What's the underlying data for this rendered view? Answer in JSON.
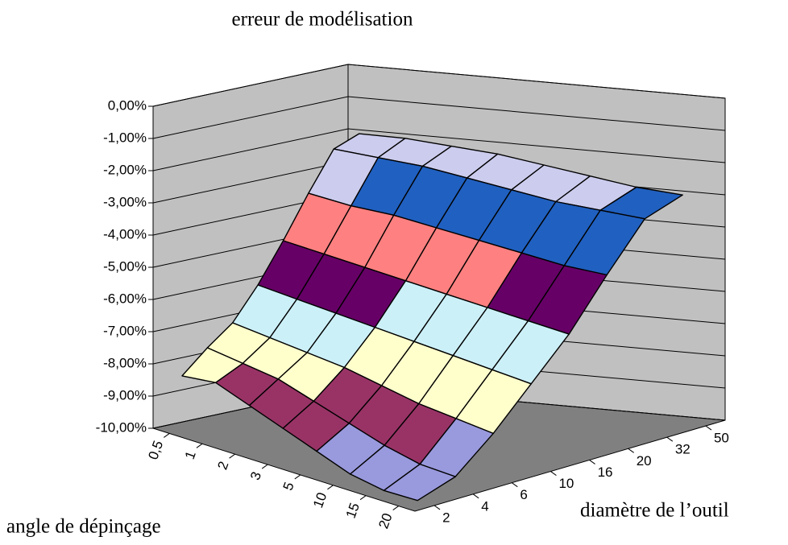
{
  "chart_data": {
    "type": "surface",
    "title": "erreur de modélisation",
    "xlabel": "angle de dépinçage",
    "ylabel": "diamètre de l’outil",
    "x_categories": [
      "0,5",
      "1",
      "2",
      "3",
      "5",
      "10",
      "15",
      "20"
    ],
    "y_categories": [
      "2",
      "4",
      "6",
      "10",
      "16",
      "20",
      "32",
      "50"
    ],
    "values": [
      [
        -8.3,
        -7.6,
        -7.0,
        -6.0,
        -4.8,
        -3.5,
        -2.3,
        -2.0
      ],
      [
        -8.2,
        -7.8,
        -7.2,
        -6.2,
        -5.0,
        -3.7,
        -2.4,
        -2.0
      ],
      [
        -8.6,
        -8.0,
        -7.4,
        -6.4,
        -5.2,
        -3.8,
        -2.5,
        -2.1
      ],
      [
        -9.0,
        -8.4,
        -7.6,
        -6.6,
        -5.4,
        -4.0,
        -2.7,
        -2.2
      ],
      [
        -9.4,
        -8.8,
        -7.9,
        -6.8,
        -5.6,
        -4.2,
        -2.9,
        -2.4
      ],
      [
        -9.8,
        -9.2,
        -8.2,
        -7.0,
        -5.8,
        -4.4,
        -3.1,
        -2.6
      ],
      [
        -10.0,
        -9.5,
        -8.4,
        -7.2,
        -6.0,
        -4.6,
        -3.2,
        -2.8
      ],
      [
        -10.0,
        -9.6,
        -8.6,
        -7.4,
        -6.2,
        -4.7,
        -3.3,
        -2.9
      ]
    ],
    "zlim": [
      -10,
      0
    ],
    "zticks": [
      {
        "value": 0,
        "label": "0,00%"
      },
      {
        "value": -1,
        "label": "-1,00%"
      },
      {
        "value": -2,
        "label": "-2,00%"
      },
      {
        "value": -3,
        "label": "-3,00%"
      },
      {
        "value": -4,
        "label": "-4,00%"
      },
      {
        "value": -5,
        "label": "-5,00%"
      },
      {
        "value": -6,
        "label": "-6,00%"
      },
      {
        "value": -7,
        "label": "-7,00%"
      },
      {
        "value": -8,
        "label": "-8,00%"
      },
      {
        "value": -9,
        "label": "-9,00%"
      },
      {
        "value": -10,
        "label": "-10,00%"
      }
    ],
    "band_colors": [
      "#9999dd",
      "#993366",
      "#ffffcc",
      "#ccf0f8",
      "#660066",
      "#ff8080",
      "#2060c0",
      "#ccccee"
    ],
    "grid": true
  }
}
